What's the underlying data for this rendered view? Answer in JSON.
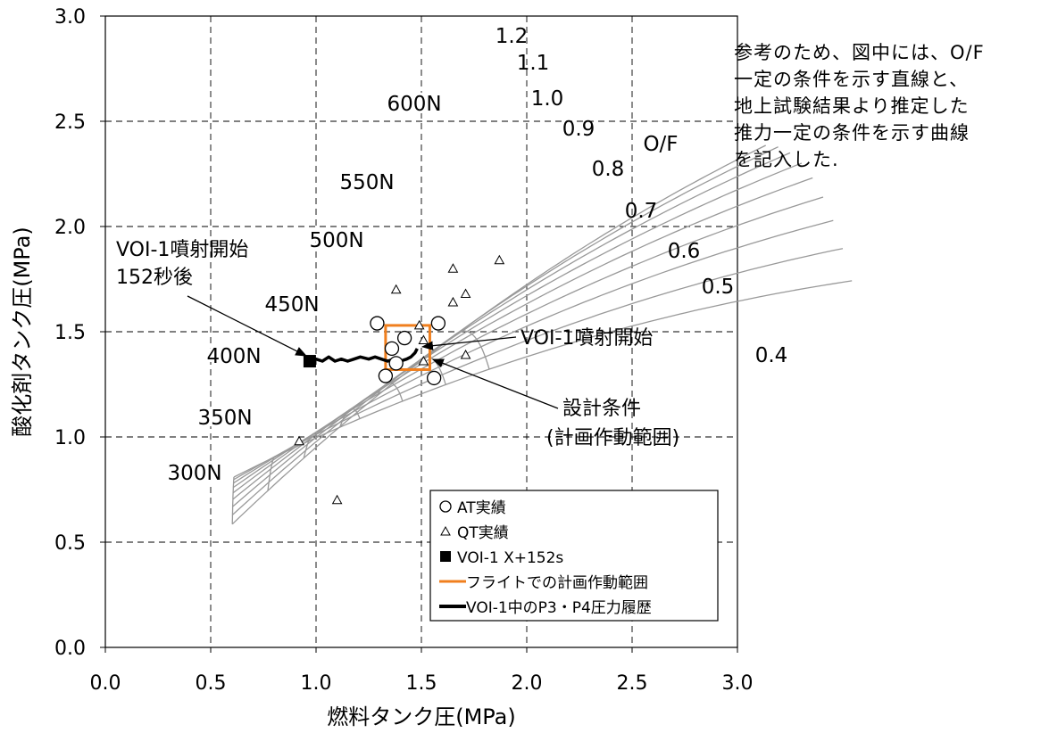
{
  "chart_data": {
    "type": "scatter",
    "xlabel": "燃料タンク圧(MPa)",
    "ylabel": "酸化剤タンク圧(MPa)",
    "xlim": [
      0.0,
      3.0
    ],
    "ylim": [
      0.0,
      3.0
    ],
    "x_ticks": [
      "0.0",
      "0.5",
      "1.0",
      "1.5",
      "2.0",
      "2.5",
      "3.0"
    ],
    "y_ticks": [
      "0.0",
      "0.5",
      "1.0",
      "1.5",
      "2.0",
      "2.5",
      "3.0"
    ],
    "grid": "dashed",
    "legend_position": "bottom-right",
    "of_lines": {
      "title": "O/F",
      "labels": [
        "1.2",
        "1.1",
        "1.0",
        "0.9",
        "0.8",
        "0.7",
        "0.6",
        "0.5",
        "0.4"
      ]
    },
    "thrust_curves": {
      "labels": [
        "300N",
        "350N",
        "400N",
        "450N",
        "500N",
        "550N",
        "600N"
      ]
    },
    "series": [
      {
        "name": "AT実績",
        "marker": "circle",
        "points": [
          [
            1.29,
            1.54
          ],
          [
            1.36,
            1.42
          ],
          [
            1.42,
            1.47
          ],
          [
            1.38,
            1.35
          ],
          [
            1.33,
            1.29
          ],
          [
            1.56,
            1.28
          ],
          [
            1.58,
            1.54
          ]
        ]
      },
      {
        "name": "QT実績",
        "marker": "triangle",
        "points": [
          [
            1.38,
            1.7
          ],
          [
            1.65,
            1.8
          ],
          [
            1.87,
            1.84
          ],
          [
            1.71,
            1.68
          ],
          [
            1.65,
            1.64
          ],
          [
            1.49,
            1.53
          ],
          [
            1.51,
            1.46
          ],
          [
            1.51,
            1.36
          ],
          [
            1.71,
            1.39
          ],
          [
            0.92,
            0.98
          ],
          [
            1.1,
            0.7
          ]
        ]
      },
      {
        "name": "VOI-1 X+152s",
        "marker": "square",
        "points": [
          [
            0.97,
            1.36
          ]
        ]
      },
      {
        "name": "フライトでの計画作動範囲",
        "type": "rect",
        "color": "#f07f1e",
        "x_range": [
          1.33,
          1.54
        ],
        "y_range": [
          1.32,
          1.53
        ]
      },
      {
        "name": "VOI-1中のP3・P4圧力履歴",
        "type": "line",
        "color": "#000000",
        "points": [
          [
            0.97,
            1.36
          ],
          [
            1.0,
            1.37
          ],
          [
            1.03,
            1.36
          ],
          [
            1.06,
            1.38
          ],
          [
            1.09,
            1.36
          ],
          [
            1.12,
            1.37
          ],
          [
            1.15,
            1.36
          ],
          [
            1.18,
            1.37
          ],
          [
            1.21,
            1.38
          ],
          [
            1.25,
            1.37
          ],
          [
            1.28,
            1.38
          ],
          [
            1.31,
            1.37
          ],
          [
            1.34,
            1.36
          ],
          [
            1.37,
            1.37
          ],
          [
            1.4,
            1.36
          ],
          [
            1.43,
            1.37
          ],
          [
            1.45,
            1.38
          ],
          [
            1.47,
            1.4
          ],
          [
            1.48,
            1.42
          ]
        ]
      }
    ],
    "annotations": [
      {
        "text_lines": [
          "VOI-1噴射開始",
          "152秒後"
        ],
        "target": [
          0.97,
          1.36
        ]
      },
      {
        "text_lines": [
          "VOI-1噴射開始"
        ],
        "target": [
          1.48,
          1.42
        ]
      },
      {
        "text_lines": [
          "設計条件",
          "(計画作動範囲)"
        ],
        "target": [
          1.53,
          1.36
        ]
      }
    ]
  },
  "note": {
    "lines": [
      "参考のため、図中には、O/F",
      "一定の条件を示す直線と、",
      "地上試験結果より推定した",
      "推力一定の条件を示す曲線",
      "を記入した."
    ]
  }
}
